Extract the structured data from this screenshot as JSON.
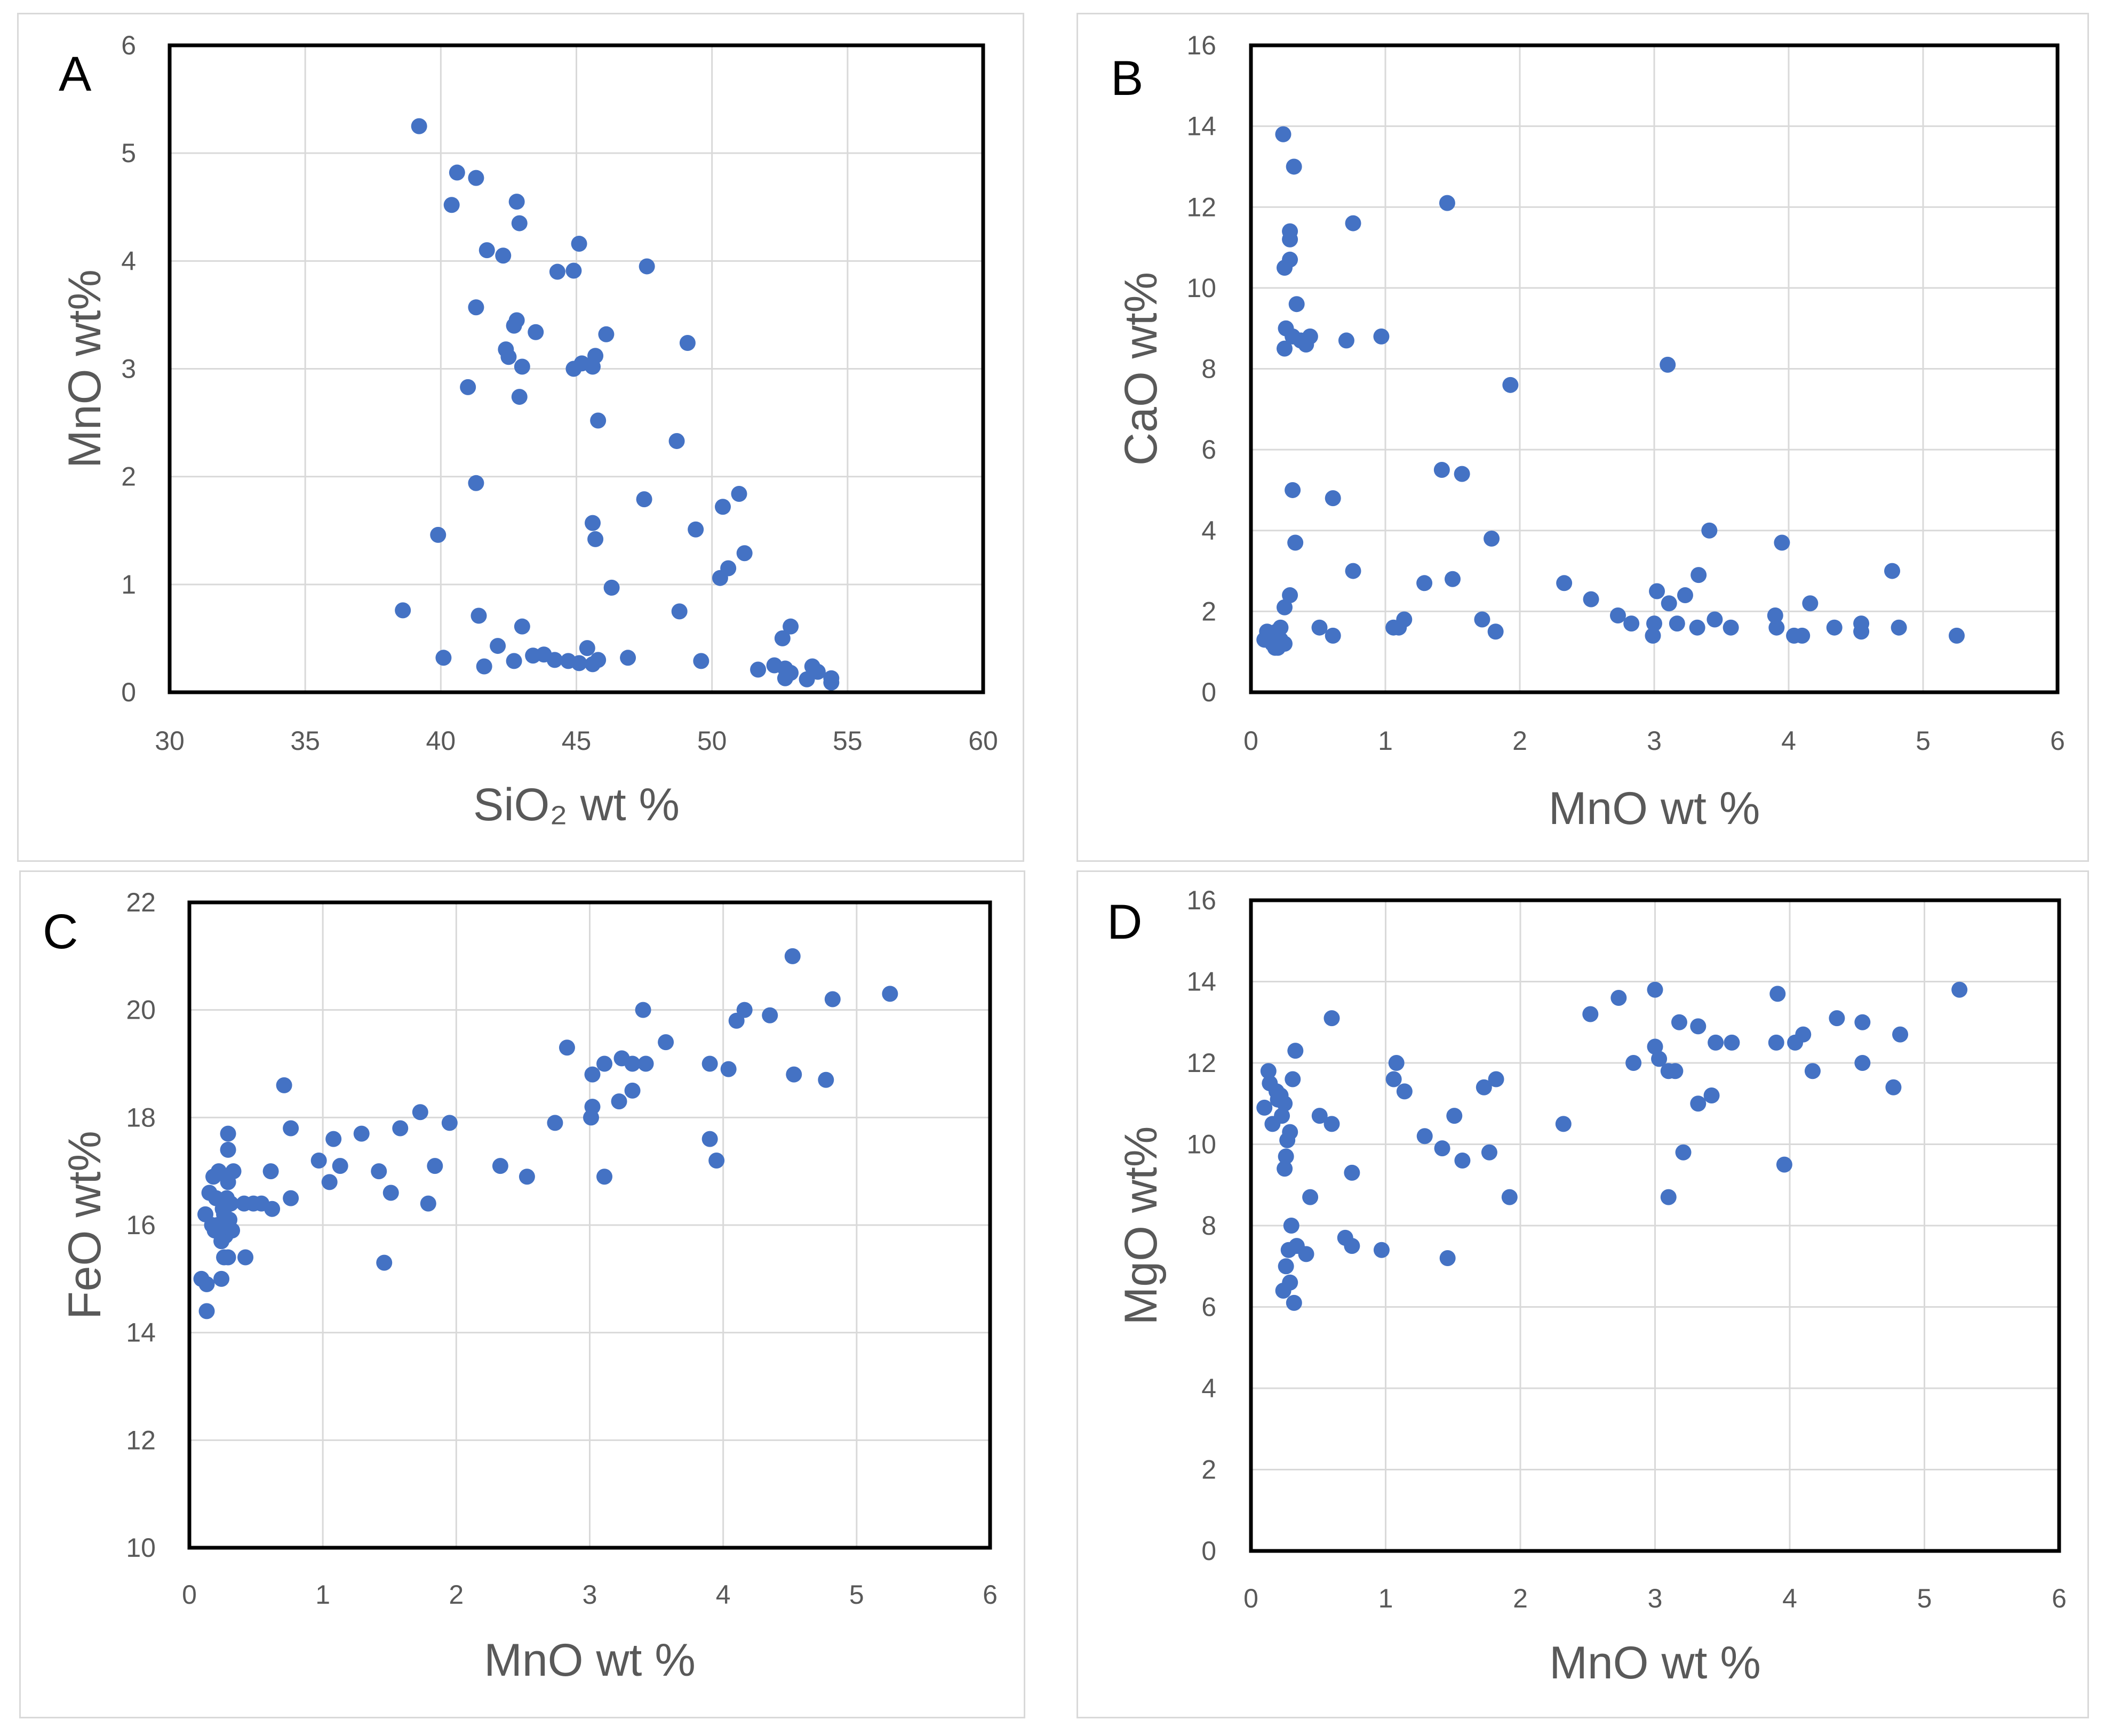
{
  "chart_data": [
    {
      "type": "scatter",
      "panel_label": "A",
      "xlabel": "SiO₂ wt %",
      "ylabel": "MnO wt%",
      "xlim": [
        30,
        60
      ],
      "ylim": [
        0,
        6
      ],
      "xticks": [
        30,
        35,
        40,
        45,
        50,
        55,
        60
      ],
      "yticks": [
        0,
        1,
        2,
        3,
        4,
        5,
        6
      ],
      "grid": true,
      "marker_color": "#4472C4",
      "x": [
        39.2,
        40.6,
        40.4,
        41.3,
        42.8,
        42.9,
        41.7,
        42.3,
        45.1,
        44.3,
        44.9,
        47.6,
        41.3,
        42.8,
        42.7,
        43.5,
        42.4,
        42.5,
        46.1,
        45.7,
        43.0,
        45.2,
        44.9,
        45.6,
        49.1,
        41.0,
        42.9,
        45.8,
        48.7,
        41.3,
        47.5,
        51.0,
        50.4,
        45.6,
        49.4,
        45.7,
        39.9,
        51.2,
        50.6,
        50.3,
        46.3,
        38.6,
        48.8,
        41.4,
        43.0,
        52.6,
        52.9,
        42.1,
        43.4,
        43.8,
        45.4,
        44.2,
        44.7,
        45.1,
        46.9,
        45.8,
        45.6,
        40.1,
        42.7,
        41.6,
        49.6,
        51.7,
        52.3,
        52.7,
        52.9,
        53.5,
        53.9,
        53.7,
        54.4,
        54.4,
        52.7
      ],
      "y": [
        5.25,
        4.82,
        4.52,
        4.77,
        4.55,
        4.35,
        4.1,
        4.05,
        4.16,
        3.9,
        3.91,
        3.95,
        3.57,
        3.45,
        3.4,
        3.34,
        3.18,
        3.11,
        3.32,
        3.12,
        3.02,
        3.05,
        3.0,
        3.02,
        3.24,
        2.83,
        2.74,
        2.52,
        2.33,
        1.94,
        1.79,
        1.84,
        1.72,
        1.57,
        1.51,
        1.42,
        1.46,
        1.29,
        1.15,
        1.06,
        0.97,
        0.76,
        0.75,
        0.71,
        0.61,
        0.5,
        0.61,
        0.43,
        0.34,
        0.35,
        0.41,
        0.3,
        0.29,
        0.27,
        0.32,
        0.3,
        0.26,
        0.32,
        0.29,
        0.24,
        0.29,
        0.21,
        0.25,
        0.22,
        0.18,
        0.12,
        0.19,
        0.24,
        0.13,
        0.09,
        0.13
      ]
    },
    {
      "type": "scatter",
      "panel_label": "B",
      "xlabel": "MnO wt %",
      "ylabel": "CaO wt%",
      "xlim": [
        0,
        6
      ],
      "ylim": [
        0,
        16
      ],
      "xticks": [
        0,
        1,
        2,
        3,
        4,
        5,
        6
      ],
      "yticks": [
        0,
        2,
        4,
        6,
        8,
        10,
        12,
        14,
        16
      ],
      "grid": true,
      "marker_color": "#4472C4",
      "x": [
        0.24,
        0.32,
        0.76,
        1.46,
        0.29,
        0.29,
        0.29,
        0.25,
        0.34,
        0.26,
        0.31,
        0.37,
        0.44,
        0.41,
        0.97,
        0.71,
        0.25,
        3.1,
        1.93,
        1.42,
        1.57,
        0.31,
        0.61,
        3.41,
        0.33,
        1.79,
        3.95,
        0.76,
        4.77,
        1.29,
        1.5,
        2.33,
        0.29,
        3.33,
        3.02,
        3.23,
        2.53,
        3.11,
        0.25,
        2.73,
        3.9,
        1.72,
        3.17,
        4.16,
        1.14,
        2.83,
        3.45,
        3.0,
        1.06,
        3.32,
        1.82,
        0.51,
        3.57,
        4.34,
        4.54,
        4.54,
        3.91,
        1.1,
        4.82,
        0.61,
        0.12,
        0.22,
        0.19,
        0.15,
        0.17,
        0.22,
        2.99,
        0.2,
        4.04,
        4.1,
        5.25,
        0.1,
        0.16,
        0.25,
        0.18
      ],
      "y": [
        13.8,
        13.0,
        11.6,
        12.1,
        11.4,
        11.2,
        10.7,
        10.5,
        9.6,
        9.0,
        8.8,
        8.7,
        8.8,
        8.6,
        8.8,
        8.7,
        8.5,
        8.1,
        7.6,
        5.5,
        5.4,
        5.0,
        4.8,
        4.0,
        3.7,
        3.8,
        3.7,
        3.0,
        3.0,
        2.7,
        2.8,
        2.7,
        2.4,
        2.9,
        2.5,
        2.4,
        2.3,
        2.2,
        2.1,
        1.9,
        1.9,
        1.8,
        1.7,
        2.2,
        1.8,
        1.7,
        1.8,
        1.7,
        1.6,
        1.6,
        1.5,
        1.6,
        1.6,
        1.6,
        1.7,
        1.5,
        1.6,
        1.6,
        1.6,
        1.4,
        1.5,
        1.6,
        1.5,
        1.4,
        1.2,
        1.3,
        1.4,
        1.1,
        1.4,
        1.4,
        1.4,
        1.3,
        1.2,
        1.2,
        1.1
      ]
    },
    {
      "type": "scatter",
      "panel_label": "C",
      "xlabel": "MnO wt %",
      "ylabel": "FeO wt%",
      "xlim": [
        0,
        6
      ],
      "ylim": [
        10,
        22
      ],
      "xticks": [
        0,
        1,
        2,
        3,
        4,
        5,
        6
      ],
      "yticks": [
        10,
        12,
        14,
        16,
        18,
        20,
        22
      ],
      "grid": true,
      "marker_color": "#4472C4",
      "x": [
        4.52,
        5.25,
        4.82,
        4.16,
        4.35,
        4.1,
        3.4,
        3.57,
        2.83,
        3.24,
        3.11,
        3.32,
        3.42,
        4.04,
        3.9,
        3.02,
        4.53,
        4.77,
        3.32,
        3.22,
        3.02,
        2.74,
        3.01,
        0.71,
        1.73,
        3.9,
        1.95,
        1.58,
        0.76,
        1.29,
        1.08,
        0.29,
        0.97,
        3.95,
        1.13,
        0.29,
        0.33,
        1.84,
        2.33,
        1.42,
        0.61,
        2.53,
        3.11,
        1.05,
        0.29,
        0.22,
        0.76,
        0.18,
        1.51,
        1.79,
        0.28,
        0.15,
        0.62,
        0.41,
        0.31,
        0.54,
        0.48,
        0.2,
        0.25,
        0.12,
        0.26,
        0.19,
        0.3,
        0.21,
        0.27,
        0.32,
        0.17,
        0.26,
        0.24,
        0.29,
        0.42,
        1.46,
        0.24,
        0.09,
        0.13,
        0.13
      ],
      "y": [
        21.0,
        20.3,
        20.2,
        20.0,
        19.9,
        19.8,
        20.0,
        19.4,
        19.3,
        19.1,
        19.0,
        19.0,
        19.0,
        18.9,
        19.0,
        18.8,
        18.8,
        18.7,
        18.5,
        18.3,
        18.2,
        17.9,
        18.0,
        18.6,
        18.1,
        17.6,
        17.9,
        17.8,
        17.8,
        17.7,
        17.6,
        17.7,
        17.2,
        17.2,
        17.1,
        17.4,
        17.0,
        17.1,
        17.1,
        17.0,
        17.0,
        16.9,
        16.9,
        16.8,
        16.8,
        17.0,
        16.5,
        16.9,
        16.6,
        16.4,
        16.5,
        16.6,
        16.3,
        16.4,
        16.4,
        16.4,
        16.4,
        16.5,
        16.3,
        16.2,
        16.2,
        15.9,
        16.1,
        16.0,
        15.8,
        15.9,
        16.0,
        15.4,
        15.7,
        15.4,
        15.4,
        15.3,
        15.0,
        15.0,
        14.9,
        14.4
      ]
    },
    {
      "type": "scatter",
      "panel_label": "D",
      "xlabel": "MnO wt %",
      "ylabel": "MgO wt%",
      "xlim": [
        0,
        6
      ],
      "ylim": [
        0,
        16
      ],
      "xticks": [
        0,
        1,
        2,
        3,
        4,
        5,
        6
      ],
      "yticks": [
        0,
        2,
        4,
        6,
        8,
        10,
        12,
        14,
        16
      ],
      "grid": true,
      "marker_color": "#4472C4",
      "x": [
        3.0,
        5.26,
        3.91,
        2.73,
        0.6,
        2.52,
        4.35,
        4.54,
        3.18,
        3.32,
        4.82,
        4.1,
        4.04,
        3.45,
        3.57,
        3.9,
        3.0,
        0.33,
        3.03,
        2.84,
        4.54,
        1.08,
        0.13,
        3.1,
        3.15,
        4.17,
        1.06,
        0.31,
        1.82,
        0.14,
        4.77,
        1.73,
        3.42,
        1.14,
        0.19,
        0.2,
        0.25,
        0.22,
        3.32,
        0.1,
        1.51,
        0.23,
        0.16,
        0.51,
        0.6,
        2.32,
        0.29,
        0.27,
        1.29,
        1.42,
        3.21,
        1.77,
        0.26,
        3.96,
        1.57,
        0.25,
        0.75,
        1.92,
        0.44,
        3.1,
        0.3,
        0.7,
        0.75,
        0.34,
        0.28,
        0.97,
        0.41,
        1.46,
        0.26,
        0.29,
        0.24,
        0.32
      ],
      "y": [
        13.8,
        13.8,
        13.7,
        13.6,
        13.1,
        13.2,
        13.1,
        13.0,
        13.0,
        12.9,
        12.7,
        12.7,
        12.5,
        12.5,
        12.5,
        12.5,
        12.4,
        12.3,
        12.1,
        12.0,
        12.0,
        12.0,
        11.8,
        11.8,
        11.8,
        11.8,
        11.6,
        11.6,
        11.6,
        11.5,
        11.4,
        11.4,
        11.2,
        11.3,
        11.3,
        11.1,
        11.0,
        11.2,
        11.0,
        10.9,
        10.7,
        10.7,
        10.5,
        10.7,
        10.5,
        10.5,
        10.3,
        10.1,
        10.2,
        9.9,
        9.8,
        9.8,
        9.7,
        9.5,
        9.6,
        9.4,
        9.3,
        8.7,
        8.7,
        8.7,
        8.0,
        7.7,
        7.5,
        7.5,
        7.4,
        7.4,
        7.3,
        7.2,
        7.0,
        6.6,
        6.4,
        6.1
      ]
    }
  ]
}
